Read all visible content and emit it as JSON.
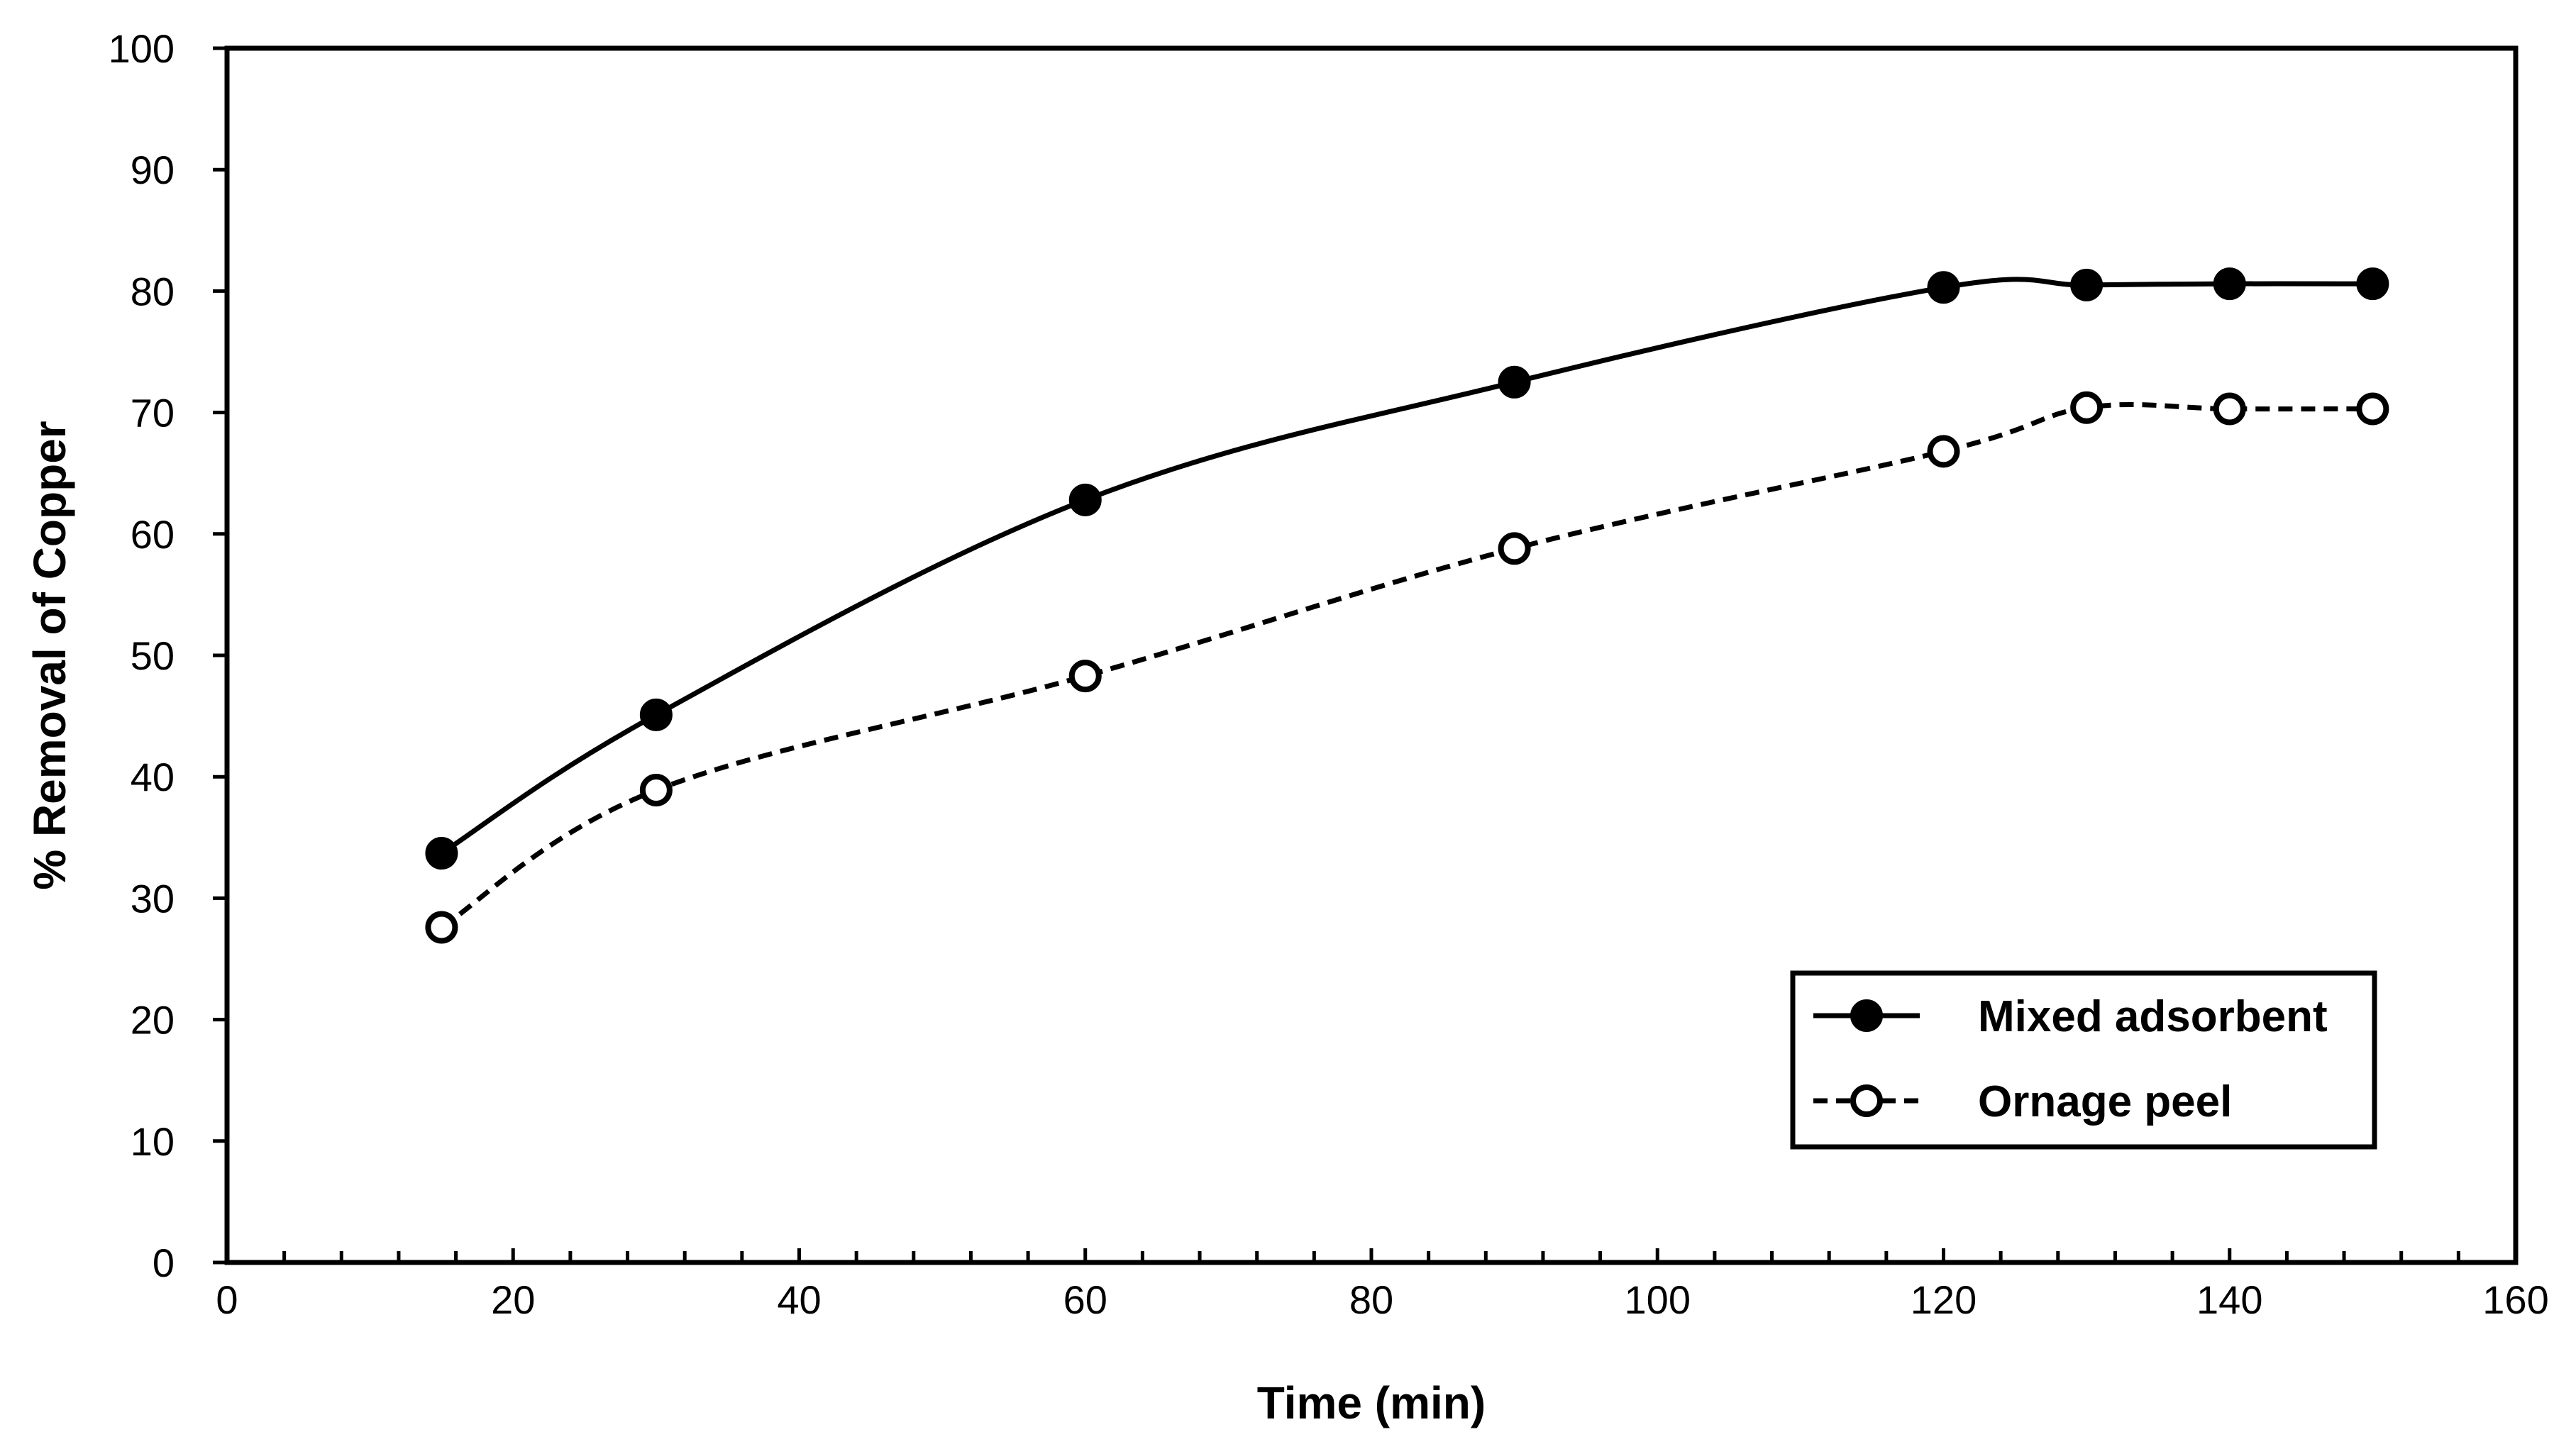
{
  "chart_data": {
    "type": "line",
    "title": "",
    "xlabel": "Time (min)",
    "ylabel": "% Removal of Copper",
    "xlim": [
      0,
      160
    ],
    "ylim": [
      0,
      100
    ],
    "x_ticks": [
      0,
      20,
      40,
      60,
      80,
      100,
      120,
      140,
      160
    ],
    "y_ticks": [
      0,
      10,
      20,
      30,
      40,
      50,
      60,
      70,
      80,
      90,
      100
    ],
    "grid": false,
    "legend_position": "bottom-right",
    "series": [
      {
        "name": "Mixed adsorbent",
        "marker": "filled-circle",
        "line_style": "solid",
        "color": "#000000",
        "x": [
          15,
          30,
          60,
          90,
          120,
          130,
          140,
          150
        ],
        "values": [
          33.7,
          45.1,
          62.8,
          72.5,
          80.3,
          80.5,
          80.6,
          80.6
        ]
      },
      {
        "name": "Ornage peel",
        "marker": "open-circle",
        "line_style": "dashed",
        "color": "#000000",
        "x": [
          15,
          30,
          60,
          90,
          120,
          130,
          140,
          150
        ],
        "values": [
          27.6,
          38.9,
          48.3,
          58.8,
          66.8,
          70.4,
          70.3,
          70.3
        ]
      }
    ]
  }
}
